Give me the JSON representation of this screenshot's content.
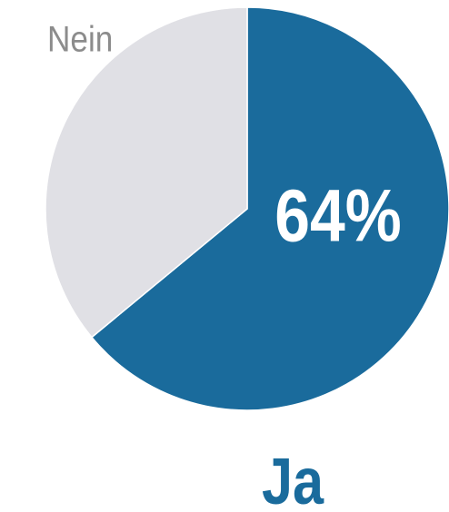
{
  "chart_data": {
    "type": "pie",
    "categories": [
      "Ja",
      "Nein"
    ],
    "values": [
      64,
      36
    ],
    "value_labels": [
      "64%",
      null
    ],
    "colors": [
      "#1a6b9c",
      "#e0e0e5"
    ]
  }
}
